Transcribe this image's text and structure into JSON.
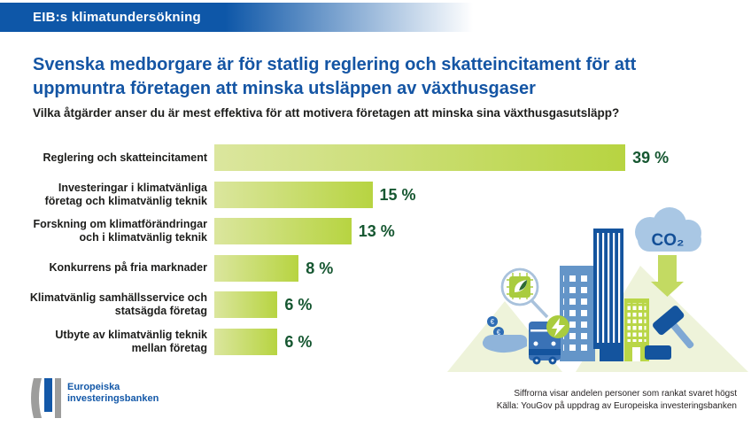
{
  "banner": {
    "text": "EIB:s klimatundersökning"
  },
  "title_lines": [
    "Svenska medborgare är för statlig reglering och skatteincitament för att",
    "uppmuntra företagen att minska utsläppen av växthusgaser"
  ],
  "subtitle": "Vilka åtgärder anser du är mest effektiva för att motivera företagen att minska sina växthusgasutsläpp?",
  "chart_data": {
    "type": "bar",
    "orientation": "horizontal",
    "unit": "%",
    "categories": [
      "Reglering och skatteincitament",
      "Investeringar i klimatvänliga företag och klimatvänlig teknik",
      "Forskning om klimatförändringar och i klimatvänlig teknik",
      "Konkurrens på fria marknader",
      "Klimatvänlig samhällsservice och statsägda företag",
      "Utbyte av klimatvänlig teknik mellan företag"
    ],
    "label_lines": [
      [
        "Reglering och skatteincitament"
      ],
      [
        "Investeringar i klimatvänliga",
        "företag och klimatvänlig teknik"
      ],
      [
        "Forskning om klimatförändringar",
        "och i klimatvänlig teknik"
      ],
      [
        "Konkurrens på fria marknader"
      ],
      [
        "Klimatvänlig samhällsservice och",
        "statsägda företag"
      ],
      [
        "Utbyte av klimatvänlig teknik",
        "mellan företag"
      ]
    ],
    "values": [
      39,
      15,
      13,
      8,
      6,
      6
    ],
    "value_labels": [
      "39 %",
      "15 %",
      "13 %",
      "8 %",
      "6 %",
      "6 %"
    ],
    "xlim": [
      0,
      42
    ],
    "grid": false,
    "legend": false
  },
  "illustration": {
    "co2_label": "CO₂"
  },
  "footer": {
    "logo_line1": "Europeiska",
    "logo_line2": "investeringsbanken",
    "note_line1": "Siffrorna visar andelen personer som rankat svaret högst",
    "note_line2": "Källa: YouGov på uppdrag av Europeiska investeringsbanken"
  },
  "colors": {
    "header_blue": "#0e57a8",
    "title_blue": "#1455a4",
    "bar_gradient_start": "#dbe69e",
    "bar_gradient_end": "#b7d441",
    "value_green": "#165731",
    "label_dark": "#1d1d1b",
    "logo_blue": "#1358a8",
    "logo_gray": "#9d9d9c",
    "illu_dark_blue": "#14549e",
    "illu_mid_blue": "#6495c8",
    "illu_light_blue": "#a9c7e4",
    "illu_green": "#b9d647",
    "illu_arrow_green": "#c3da62",
    "illu_pale_green": "#eef3da"
  }
}
